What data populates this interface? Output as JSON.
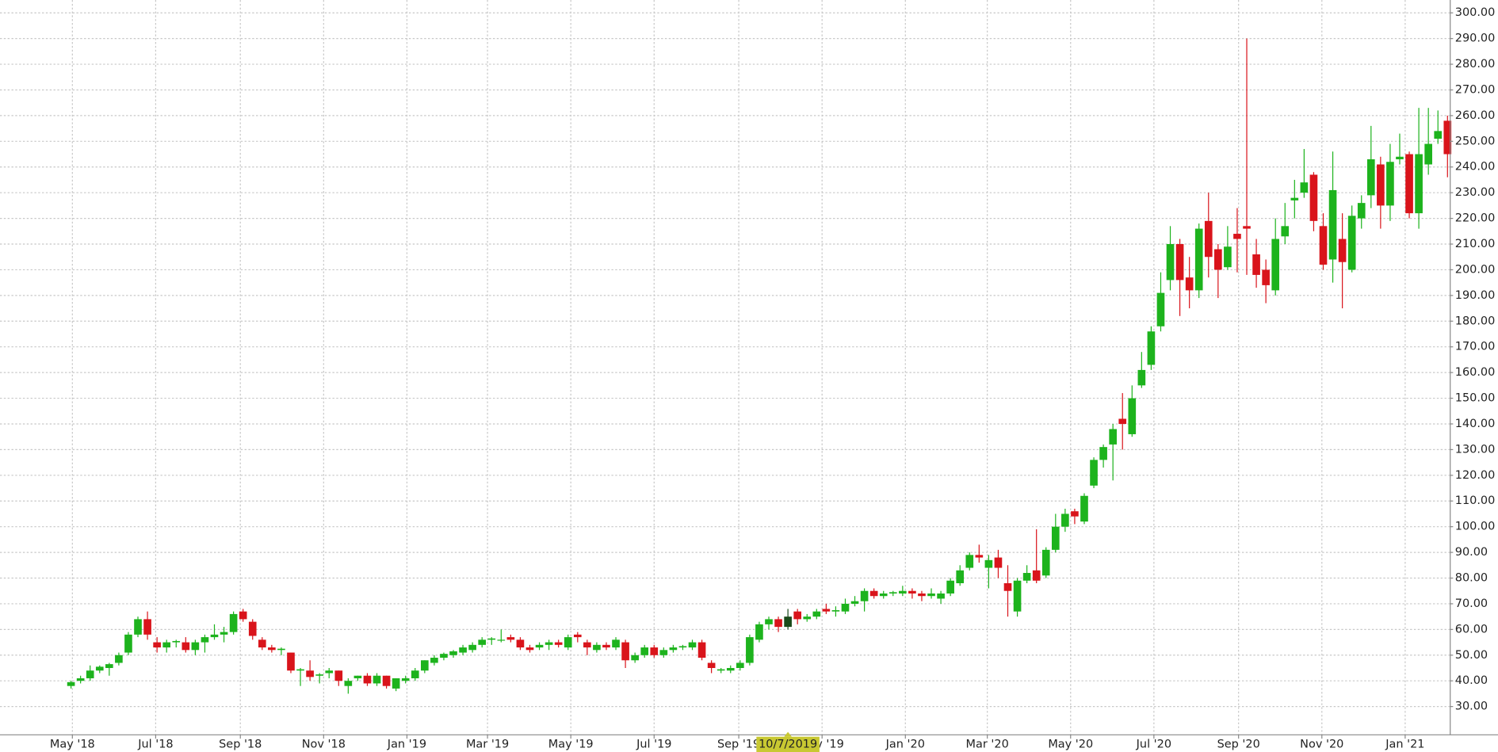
{
  "chart_data": {
    "type": "candlestick",
    "x": [
      "2018-04-30",
      "2018-05-07",
      "2018-05-14",
      "2018-05-21",
      "2018-05-28",
      "2018-06-04",
      "2018-06-11",
      "2018-06-18",
      "2018-06-25",
      "2018-07-02",
      "2018-07-09",
      "2018-07-16",
      "2018-07-23",
      "2018-07-30",
      "2018-08-06",
      "2018-08-13",
      "2018-08-20",
      "2018-08-27",
      "2018-09-03",
      "2018-09-10",
      "2018-09-17",
      "2018-09-24",
      "2018-10-01",
      "2018-10-08",
      "2018-10-15",
      "2018-10-22",
      "2018-10-29",
      "2018-11-05",
      "2018-11-12",
      "2018-11-19",
      "2018-11-26",
      "2018-12-03",
      "2018-12-10",
      "2018-12-17",
      "2018-12-24",
      "2018-12-31",
      "2019-01-07",
      "2019-01-14",
      "2019-01-21",
      "2019-01-28",
      "2019-02-04",
      "2019-02-11",
      "2019-02-18",
      "2019-02-25",
      "2019-03-04",
      "2019-03-11",
      "2019-03-18",
      "2019-03-25",
      "2019-04-01",
      "2019-04-08",
      "2019-04-15",
      "2019-04-22",
      "2019-04-29",
      "2019-05-06",
      "2019-05-13",
      "2019-05-20",
      "2019-05-27",
      "2019-06-03",
      "2019-06-10",
      "2019-06-17",
      "2019-06-24",
      "2019-07-01",
      "2019-07-08",
      "2019-07-15",
      "2019-07-22",
      "2019-07-29",
      "2019-08-05",
      "2019-08-12",
      "2019-08-19",
      "2019-08-26",
      "2019-09-02",
      "2019-09-09",
      "2019-09-16",
      "2019-09-23",
      "2019-09-30",
      "2019-10-07",
      "2019-10-14",
      "2019-10-21",
      "2019-10-28",
      "2019-11-04",
      "2019-11-11",
      "2019-11-18",
      "2019-11-25",
      "2019-12-02",
      "2019-12-09",
      "2019-12-16",
      "2019-12-23",
      "2019-12-30",
      "2020-01-06",
      "2020-01-13",
      "2020-01-20",
      "2020-01-27",
      "2020-02-03",
      "2020-02-10",
      "2020-02-17",
      "2020-02-24",
      "2020-03-02",
      "2020-03-09",
      "2020-03-16",
      "2020-03-23",
      "2020-03-30",
      "2020-04-06",
      "2020-04-13",
      "2020-04-20",
      "2020-04-27",
      "2020-05-04",
      "2020-05-11",
      "2020-05-18",
      "2020-05-25",
      "2020-06-01",
      "2020-06-08",
      "2020-06-15",
      "2020-06-22",
      "2020-06-29",
      "2020-07-06",
      "2020-07-13",
      "2020-07-20",
      "2020-07-27",
      "2020-08-03",
      "2020-08-10",
      "2020-08-17",
      "2020-08-24",
      "2020-08-31",
      "2020-09-07",
      "2020-09-14",
      "2020-09-21",
      "2020-09-28",
      "2020-10-05",
      "2020-10-12",
      "2020-10-19",
      "2020-10-26",
      "2020-11-02",
      "2020-11-09",
      "2020-11-16",
      "2020-11-23",
      "2020-11-30",
      "2020-12-07",
      "2020-12-14",
      "2020-12-21",
      "2020-12-28",
      "2021-01-04",
      "2021-01-11",
      "2021-01-18",
      "2021-01-25",
      "2021-02-01"
    ],
    "candles": [
      [
        38,
        40,
        37,
        39.5
      ],
      [
        40,
        42,
        39,
        41
      ],
      [
        41,
        46,
        40,
        44
      ],
      [
        44,
        46,
        43,
        45.5
      ],
      [
        45,
        47,
        42,
        46.5
      ],
      [
        47,
        51,
        46,
        50
      ],
      [
        51,
        59,
        50,
        58
      ],
      [
        58,
        65,
        57,
        64
      ],
      [
        64,
        67,
        56,
        58
      ],
      [
        55,
        57,
        51,
        53
      ],
      [
        53,
        56,
        51,
        55
      ],
      [
        55,
        56,
        53,
        55.5
      ],
      [
        55,
        57,
        51,
        52
      ],
      [
        52,
        56,
        50,
        55
      ],
      [
        55,
        58,
        51,
        57
      ],
      [
        57,
        62,
        56,
        58
      ],
      [
        58,
        61,
        55,
        59
      ],
      [
        59,
        67,
        58,
        66
      ],
      [
        67,
        68,
        63,
        64
      ],
      [
        63,
        64,
        56,
        57.5
      ],
      [
        56,
        57,
        52,
        53
      ],
      [
        53,
        54,
        51,
        52
      ],
      [
        52,
        53,
        50,
        52.5
      ],
      [
        51,
        51,
        43,
        44
      ],
      [
        44,
        45,
        38,
        44.5
      ],
      [
        44,
        48,
        40,
        41.5
      ],
      [
        42,
        43,
        39,
        42.5
      ],
      [
        43,
        45,
        41,
        44
      ],
      [
        44,
        44,
        38,
        40
      ],
      [
        38,
        41,
        35,
        40
      ],
      [
        41,
        42,
        40,
        42
      ],
      [
        42,
        43,
        38,
        39
      ],
      [
        39,
        43,
        38,
        42
      ],
      [
        42,
        42,
        37,
        38
      ],
      [
        37,
        41,
        36,
        41
      ],
      [
        40,
        42,
        39,
        41
      ],
      [
        41,
        45,
        40,
        44
      ],
      [
        44,
        48,
        43,
        48
      ],
      [
        47,
        50,
        46,
        49
      ],
      [
        49,
        51,
        48,
        50.5
      ],
      [
        50,
        52,
        49,
        51.5
      ],
      [
        51,
        54,
        50,
        53
      ],
      [
        52,
        55,
        51,
        54
      ],
      [
        54,
        57,
        53,
        56
      ],
      [
        56,
        57,
        54,
        56.5
      ],
      [
        56,
        60,
        55,
        56
      ],
      [
        57,
        58,
        55,
        56
      ],
      [
        56,
        57,
        52,
        53
      ],
      [
        53,
        54,
        51,
        52
      ],
      [
        53,
        55,
        52,
        54
      ],
      [
        54,
        56,
        52,
        55
      ],
      [
        55,
        56,
        53,
        54
      ],
      [
        53,
        58,
        52,
        57
      ],
      [
        58,
        59,
        55,
        57
      ],
      [
        55,
        56,
        50,
        53
      ],
      [
        52,
        55,
        51,
        54
      ],
      [
        54,
        55,
        52,
        53
      ],
      [
        53,
        57,
        52,
        56
      ],
      [
        55,
        56,
        45,
        48
      ],
      [
        48,
        51,
        47,
        50
      ],
      [
        50,
        54,
        49,
        53
      ],
      [
        53,
        54,
        49,
        50
      ],
      [
        50,
        53,
        49,
        52
      ],
      [
        52,
        54,
        51,
        53
      ],
      [
        53,
        54,
        52,
        53.5
      ],
      [
        53,
        56,
        52,
        55
      ],
      [
        55,
        56,
        48,
        49
      ],
      [
        47,
        48,
        43,
        45
      ],
      [
        44,
        45,
        43,
        44.5
      ],
      [
        44,
        46,
        43,
        45
      ],
      [
        45,
        48,
        44,
        47
      ],
      [
        47,
        58,
        46,
        57
      ],
      [
        56,
        63,
        55,
        62
      ],
      [
        62,
        65,
        60,
        64
      ],
      [
        64,
        65,
        59,
        61
      ],
      [
        61,
        68,
        60,
        65
      ],
      [
        67,
        68,
        62,
        64
      ],
      [
        64,
        66,
        63,
        65
      ],
      [
        65,
        68,
        64,
        67
      ],
      [
        68,
        70,
        66,
        67
      ],
      [
        67,
        69,
        65,
        67.5
      ],
      [
        67,
        72,
        66,
        70
      ],
      [
        70,
        73,
        69,
        71
      ],
      [
        71,
        76,
        67,
        75
      ],
      [
        75,
        76,
        72,
        73
      ],
      [
        73,
        75,
        72,
        74
      ],
      [
        74,
        75,
        73,
        74.5
      ],
      [
        74,
        77,
        73,
        75
      ],
      [
        75,
        76,
        72,
        74
      ],
      [
        74,
        75,
        71,
        73
      ],
      [
        73,
        76,
        72,
        74
      ],
      [
        72,
        75,
        70,
        74
      ],
      [
        74,
        80,
        73,
        79
      ],
      [
        78,
        85,
        77,
        83
      ],
      [
        84,
        90,
        83,
        89
      ],
      [
        89,
        93,
        86,
        88
      ],
      [
        84,
        89,
        76,
        87
      ],
      [
        88,
        91,
        80,
        84
      ],
      [
        78,
        85,
        65,
        75
      ],
      [
        67,
        80,
        65,
        79
      ],
      [
        79,
        85,
        78,
        82
      ],
      [
        83,
        99,
        78,
        79
      ],
      [
        81,
        92,
        80,
        91
      ],
      [
        91,
        105,
        90,
        100
      ],
      [
        100,
        107,
        98,
        105
      ],
      [
        106,
        107,
        101,
        104
      ],
      [
        102,
        113,
        101,
        112
      ],
      [
        116,
        127,
        115,
        126
      ],
      [
        126,
        132,
        123,
        131
      ],
      [
        132,
        140,
        118,
        138
      ],
      [
        142,
        152,
        130,
        140
      ],
      [
        136,
        155,
        135,
        150
      ],
      [
        155,
        168,
        154,
        161
      ],
      [
        163,
        178,
        161,
        176
      ],
      [
        178,
        199,
        176,
        191
      ],
      [
        196,
        217,
        192,
        210
      ],
      [
        210,
        212,
        182,
        196
      ],
      [
        197,
        205,
        185,
        192
      ],
      [
        192,
        218,
        189,
        216
      ],
      [
        219,
        230,
        197,
        205
      ],
      [
        208,
        210,
        189,
        200
      ],
      [
        201,
        217,
        200,
        209
      ],
      [
        214,
        224,
        199,
        212
      ],
      [
        217,
        290,
        198,
        216
      ],
      [
        206,
        212,
        193,
        198
      ],
      [
        200,
        204,
        187,
        194
      ],
      [
        192,
        220,
        190,
        212
      ],
      [
        213,
        226,
        210,
        217
      ],
      [
        227,
        235,
        220,
        228
      ],
      [
        230,
        247,
        228,
        234
      ],
      [
        237,
        238,
        215,
        219
      ],
      [
        217,
        222,
        200,
        202
      ],
      [
        204,
        246,
        195,
        231
      ],
      [
        212,
        222,
        185,
        203
      ],
      [
        200,
        225,
        199,
        221
      ],
      [
        220,
        229,
        216,
        226
      ],
      [
        229,
        256,
        224,
        243
      ],
      [
        241,
        244,
        216,
        225
      ],
      [
        225,
        249,
        219,
        242
      ],
      [
        243,
        253,
        241,
        244
      ],
      [
        245,
        246,
        220,
        222
      ],
      [
        222,
        263,
        216,
        245
      ],
      [
        241,
        263,
        237,
        249
      ],
      [
        251,
        262,
        249,
        254
      ],
      [
        258,
        260,
        236,
        245
      ]
    ],
    "up_color": "#1db31d",
    "down_color": "#d9141b",
    "highlight_color": "#1a4a1a",
    "xlim": [
      "2018-03-09",
      "2021-02-03"
    ],
    "xticks": [
      {
        "value": "2018-05-01",
        "label": "May '18"
      },
      {
        "value": "2018-07-01",
        "label": "Jul '18"
      },
      {
        "value": "2018-09-01",
        "label": "Sep '18"
      },
      {
        "value": "2018-11-01",
        "label": "Nov '18"
      },
      {
        "value": "2019-01-01",
        "label": "Jan '19"
      },
      {
        "value": "2019-03-01",
        "label": "Mar '19"
      },
      {
        "value": "2019-05-01",
        "label": "May '19"
      },
      {
        "value": "2019-07-01",
        "label": "Jul '19"
      },
      {
        "value": "2019-09-01",
        "label": "Sep '19"
      },
      {
        "value": "2019-11-01",
        "label": "Nov '19"
      },
      {
        "value": "2020-01-01",
        "label": "Jan '20"
      },
      {
        "value": "2020-03-01",
        "label": "Mar '20"
      },
      {
        "value": "2020-05-01",
        "label": "May '20"
      },
      {
        "value": "2020-07-01",
        "label": "Jul '20"
      },
      {
        "value": "2020-09-01",
        "label": "Sep '20"
      },
      {
        "value": "2020-11-01",
        "label": "Nov '20"
      },
      {
        "value": "2021-01-01",
        "label": "Jan '21"
      }
    ],
    "ylim": [
      19,
      305
    ],
    "yticks": [
      {
        "value": 30,
        "label": "30.00"
      },
      {
        "value": 40,
        "label": "40.00"
      },
      {
        "value": 50,
        "label": "50.00"
      },
      {
        "value": 60,
        "label": "60.00"
      },
      {
        "value": 70,
        "label": "70.00"
      },
      {
        "value": 80,
        "label": "80.00"
      },
      {
        "value": 90,
        "label": "90.00"
      },
      {
        "value": 100,
        "label": "100.00"
      },
      {
        "value": 110,
        "label": "110.00"
      },
      {
        "value": 120,
        "label": "120.00"
      },
      {
        "value": 130,
        "label": "130.00"
      },
      {
        "value": 140,
        "label": "140.00"
      },
      {
        "value": 150,
        "label": "150.00"
      },
      {
        "value": 160,
        "label": "160.00"
      },
      {
        "value": 170,
        "label": "170.00"
      },
      {
        "value": 180,
        "label": "180.00"
      },
      {
        "value": 190,
        "label": "190.00"
      },
      {
        "value": 200,
        "label": "200.00"
      },
      {
        "value": 210,
        "label": "210.00"
      },
      {
        "value": 220,
        "label": "220.00"
      },
      {
        "value": 230,
        "label": "230.00"
      },
      {
        "value": 240,
        "label": "240.00"
      },
      {
        "value": 250,
        "label": "250.00"
      },
      {
        "value": 260,
        "label": "260.00"
      },
      {
        "value": 270,
        "label": "270.00"
      },
      {
        "value": 280,
        "label": "280.00"
      },
      {
        "value": 290,
        "label": "290.00"
      },
      {
        "value": 300,
        "label": "300.00"
      }
    ],
    "grid": true,
    "crosshair": {
      "x": "2019-10-07",
      "label": "10/7/2019",
      "color": "#c8c832"
    }
  }
}
